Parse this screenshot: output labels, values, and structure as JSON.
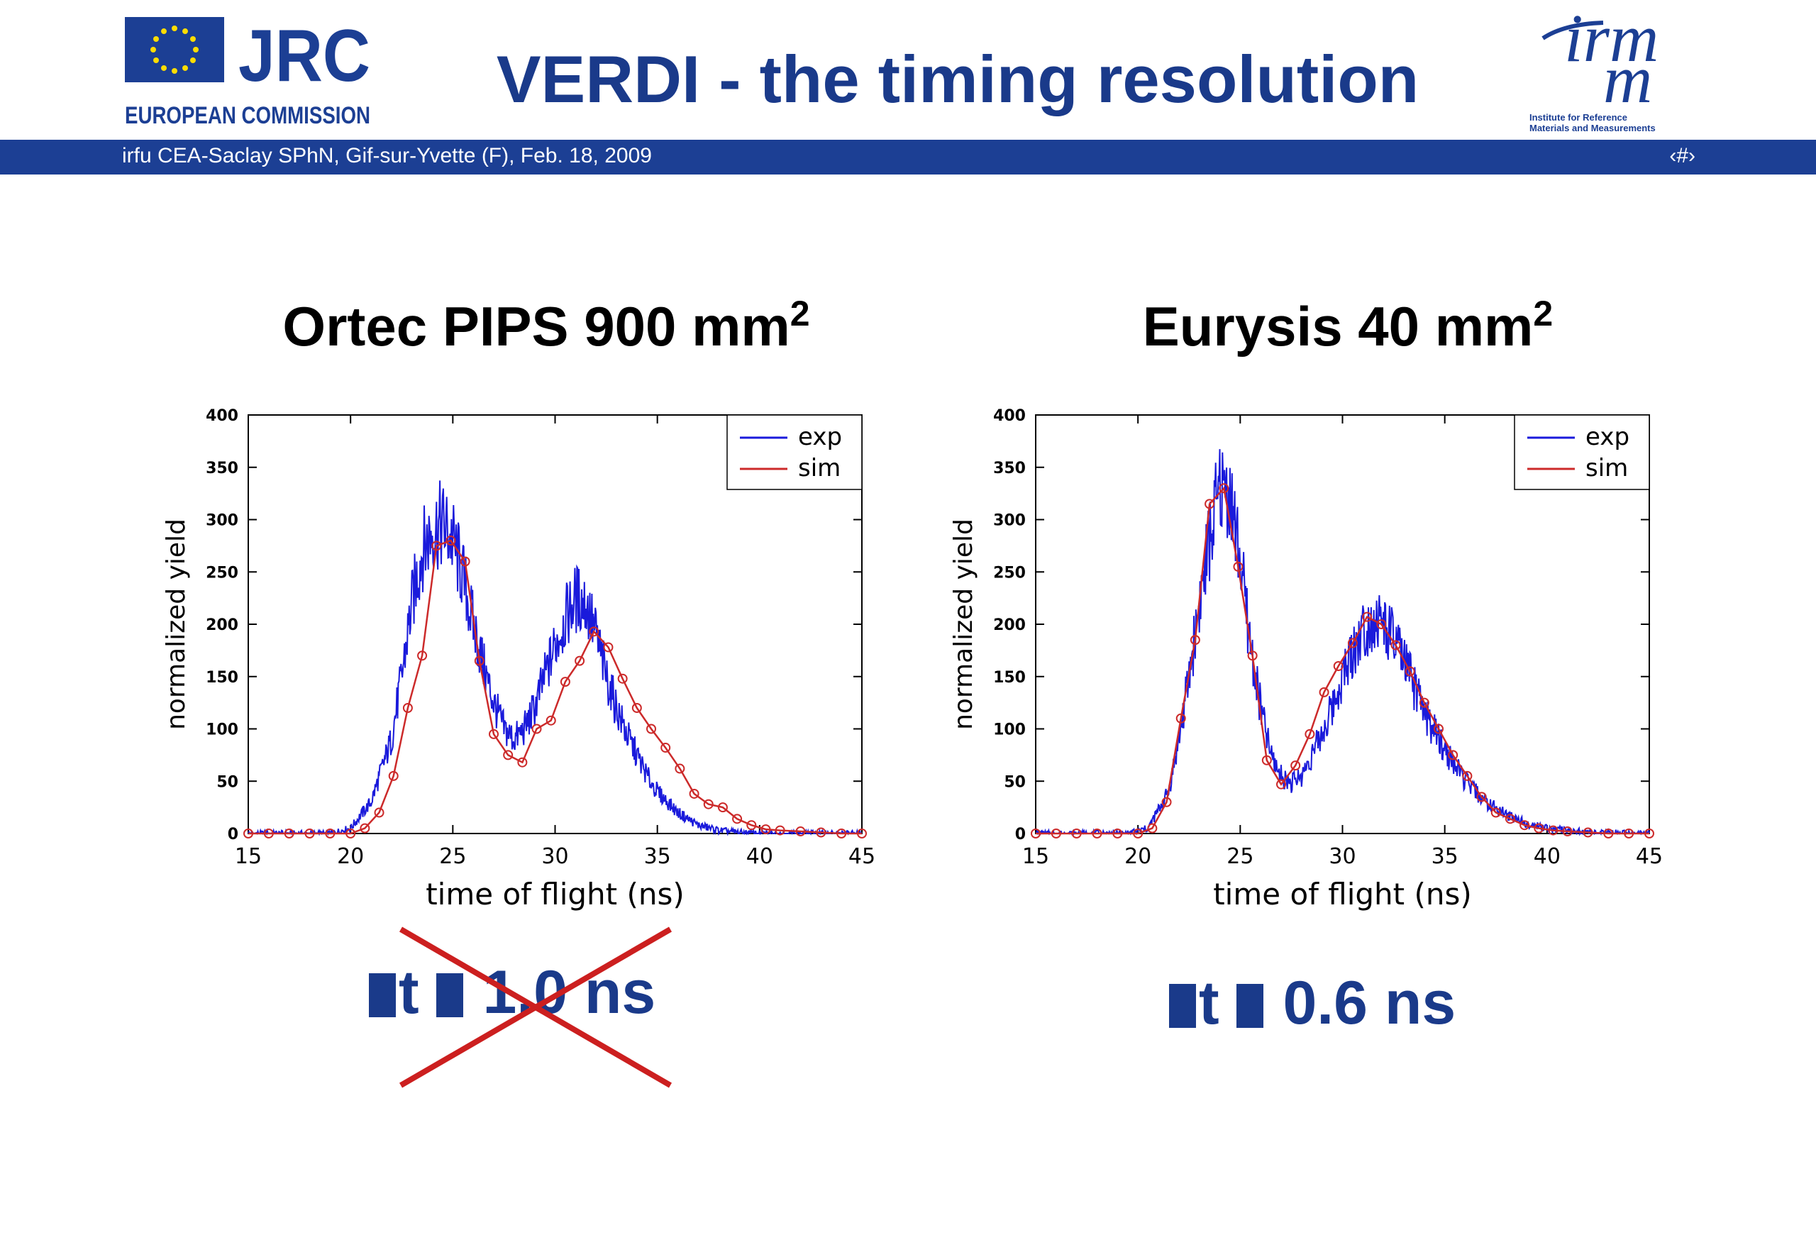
{
  "header": {
    "title": "VERDI - the timing resolution",
    "jrc_logo": {
      "text": "JRC",
      "subtitle": "EUROPEAN COMMISSION",
      "icon": "eu-flag-icon"
    },
    "irmm_logo": {
      "text_top": "irm",
      "text_bottom": "m",
      "subtitle_line1": "Institute for Reference",
      "subtitle_line2": "Materials and Measurements"
    }
  },
  "footer": {
    "text": "irfu CEA-Saclay SPhN, Gif-sur-Yvette (F), Feb. 18, 2009",
    "page_number": "‹#›"
  },
  "panels": {
    "left": {
      "title": "Ortec PIPS 900 mm",
      "title_sup": "2",
      "resolution_symbol": "t",
      "resolution_text": "1.0 ns",
      "struck_out": true
    },
    "right": {
      "title": "Eurysis 40 mm",
      "title_sup": "2",
      "resolution_symbol": "t",
      "resolution_text": "0.6 ns",
      "struck_out": false
    }
  },
  "colors": {
    "exp": "#1a1adb",
    "sim": "#cc2a2a",
    "title_blue": "#1a3a8a",
    "band": "#1c3f94",
    "cross": "#cc1f1f"
  },
  "chart_data": [
    {
      "type": "line",
      "xlabel": "time of flight (ns)",
      "ylabel": "normalized yield",
      "xlim": [
        15,
        45
      ],
      "ylim": [
        0,
        400
      ],
      "xticks": [
        15,
        20,
        25,
        30,
        35,
        40,
        45
      ],
      "yticks": [
        0,
        50,
        100,
        150,
        200,
        250,
        300,
        350,
        400
      ],
      "legend_position": "top-right",
      "series": [
        {
          "name": "exp",
          "x": [
            19,
            20,
            21,
            22,
            22.5,
            23,
            23.5,
            24,
            24.5,
            25,
            25.5,
            26,
            26.5,
            27,
            27.5,
            28,
            28.5,
            29,
            29.5,
            30,
            30.5,
            31,
            31.5,
            32,
            32.5,
            33,
            33.5,
            34,
            34.5,
            35,
            36,
            37,
            38,
            39,
            40,
            42,
            45
          ],
          "y": [
            0,
            5,
            30,
            90,
            150,
            220,
            270,
            290,
            295,
            280,
            245,
            200,
            160,
            125,
            100,
            90,
            100,
            120,
            150,
            180,
            205,
            225,
            220,
            190,
            150,
            120,
            95,
            75,
            55,
            40,
            20,
            8,
            3,
            1,
            0,
            0,
            0
          ]
        },
        {
          "name": "sim",
          "x": [
            15,
            16,
            17,
            18,
            19,
            20,
            20.7,
            21.4,
            22.1,
            22.8,
            23.5,
            24.2,
            24.9,
            25.6,
            26.3,
            27,
            27.7,
            28.4,
            29.1,
            29.8,
            30.5,
            31.2,
            31.9,
            32.6,
            33.3,
            34,
            34.7,
            35.4,
            36.1,
            36.8,
            37.5,
            38.2,
            38.9,
            39.6,
            40.3,
            41,
            42,
            43,
            44,
            45
          ],
          "y": [
            0,
            0,
            0,
            0,
            0,
            0,
            5,
            20,
            55,
            120,
            170,
            275,
            280,
            260,
            165,
            95,
            75,
            68,
            100,
            108,
            145,
            165,
            193,
            178,
            148,
            120,
            100,
            82,
            62,
            38,
            28,
            25,
            14,
            8,
            4,
            3,
            2,
            1,
            0,
            0
          ]
        }
      ]
    },
    {
      "type": "line",
      "xlabel": "time of flight (ns)",
      "ylabel": "normalized yield",
      "xlim": [
        15,
        45
      ],
      "ylim": [
        0,
        400
      ],
      "xticks": [
        15,
        20,
        25,
        30,
        35,
        40,
        45
      ],
      "yticks": [
        0,
        50,
        100,
        150,
        200,
        250,
        300,
        350,
        400
      ],
      "legend_position": "top-right",
      "series": [
        {
          "name": "exp",
          "x": [
            19.5,
            20.5,
            21.5,
            22,
            22.5,
            23,
            23.5,
            24,
            24.5,
            25,
            25.5,
            26,
            26.5,
            27,
            27.5,
            28,
            28.5,
            29,
            29.5,
            30,
            30.5,
            31,
            31.5,
            32,
            32.5,
            33,
            33.5,
            34,
            35,
            36,
            37,
            38,
            39,
            40,
            42,
            45
          ],
          "y": [
            0,
            5,
            40,
            90,
            150,
            220,
            280,
            330,
            325,
            260,
            180,
            120,
            75,
            55,
            48,
            55,
            75,
            95,
            120,
            150,
            175,
            195,
            205,
            200,
            185,
            165,
            140,
            115,
            80,
            50,
            30,
            18,
            10,
            5,
            1,
            0
          ]
        },
        {
          "name": "sim",
          "x": [
            15,
            16,
            17,
            18,
            19,
            20,
            20.7,
            21.4,
            22.1,
            22.8,
            23.5,
            24.2,
            24.9,
            25.6,
            26.3,
            27,
            27.7,
            28.4,
            29.1,
            29.8,
            30.5,
            31.2,
            31.9,
            32.6,
            33.3,
            34,
            34.7,
            35.4,
            36.1,
            36.8,
            37.5,
            38.2,
            38.9,
            39.6,
            40.3,
            41,
            42,
            43,
            44,
            45
          ],
          "y": [
            0,
            0,
            0,
            0,
            0,
            0,
            5,
            30,
            110,
            185,
            315,
            330,
            255,
            170,
            70,
            47,
            65,
            95,
            135,
            160,
            182,
            207,
            200,
            180,
            155,
            125,
            100,
            75,
            55,
            35,
            20,
            14,
            8,
            5,
            3,
            2,
            1,
            0,
            0,
            0
          ]
        }
      ]
    }
  ]
}
